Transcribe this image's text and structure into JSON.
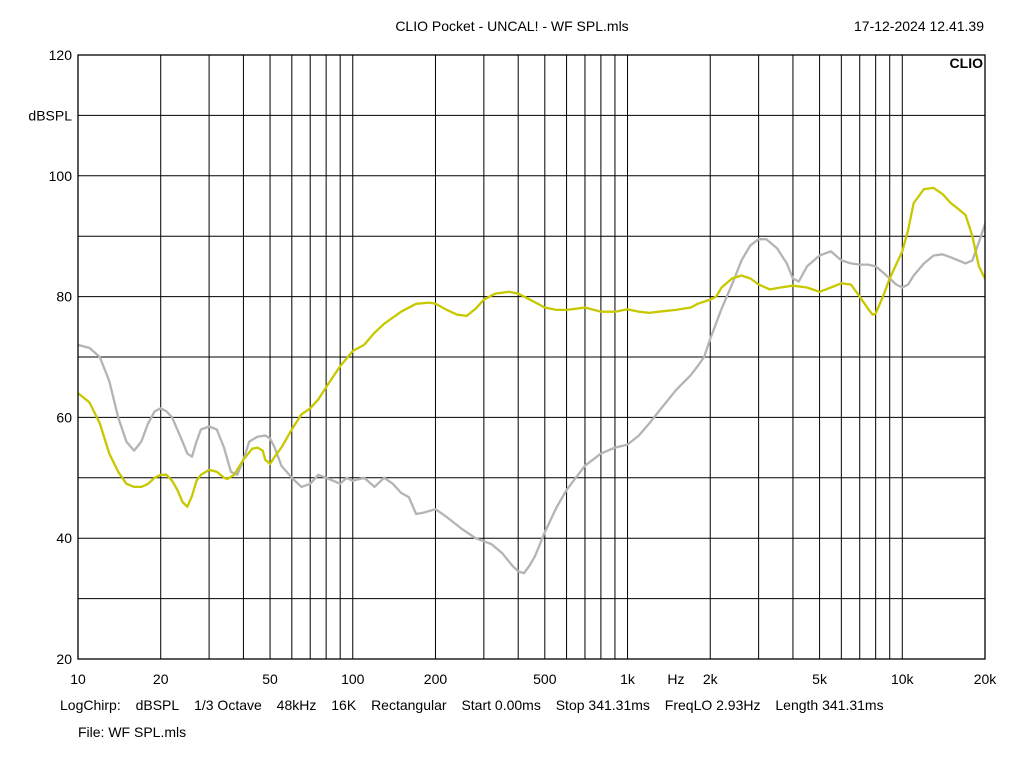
{
  "header": {
    "title": "CLIO Pocket - UNCAL! - WF SPL.mls",
    "date": "17-12-2024 12.41.39"
  },
  "chart_data": {
    "type": "line",
    "brand": "CLIO",
    "xscale": "log",
    "xlim": [
      10,
      20000
    ],
    "ylim": [
      20,
      120
    ],
    "grid": true,
    "ylabel": "dBSPL",
    "xunit": "Hz",
    "x_ticks": [
      {
        "v": 10,
        "t": "10"
      },
      {
        "v": 20,
        "t": "20"
      },
      {
        "v": 50,
        "t": "50"
      },
      {
        "v": 100,
        "t": "100"
      },
      {
        "v": 200,
        "t": "200"
      },
      {
        "v": 500,
        "t": "500"
      },
      {
        "v": 1000,
        "t": "1k"
      },
      {
        "v": 2000,
        "t": "2k"
      },
      {
        "v": 5000,
        "t": "5k"
      },
      {
        "v": 10000,
        "t": "10k"
      },
      {
        "v": 20000,
        "t": "20k"
      }
    ],
    "y_ticks": [
      {
        "v": 120,
        "t": "120"
      },
      {
        "v": 100,
        "t": "100"
      },
      {
        "v": 80,
        "t": "80"
      },
      {
        "v": 60,
        "t": "60"
      },
      {
        "v": 40,
        "t": "40"
      },
      {
        "v": 20,
        "t": "20"
      }
    ],
    "series": [
      {
        "color": "#c8c800",
        "points": [
          [
            10,
            64
          ],
          [
            11,
            62.5
          ],
          [
            12,
            59
          ],
          [
            13,
            54
          ],
          [
            14,
            51
          ],
          [
            15,
            49
          ],
          [
            16,
            48.5
          ],
          [
            17,
            48.5
          ],
          [
            18,
            49
          ],
          [
            19,
            50
          ],
          [
            20,
            50.5
          ],
          [
            21,
            50.5
          ],
          [
            22,
            49.5
          ],
          [
            23,
            48
          ],
          [
            24,
            46
          ],
          [
            25,
            45.2
          ],
          [
            26,
            47
          ],
          [
            27,
            49.5
          ],
          [
            28,
            50.5
          ],
          [
            30,
            51.3
          ],
          [
            32,
            51
          ],
          [
            34,
            50
          ],
          [
            35,
            49.8
          ],
          [
            37,
            50.5
          ],
          [
            40,
            53
          ],
          [
            43,
            54.8
          ],
          [
            45,
            55
          ],
          [
            47,
            54.5
          ],
          [
            48,
            53
          ],
          [
            50,
            52.3
          ],
          [
            52,
            53.5
          ],
          [
            55,
            55
          ],
          [
            60,
            58
          ],
          [
            65,
            60.5
          ],
          [
            70,
            61.5
          ],
          [
            75,
            63
          ],
          [
            80,
            65
          ],
          [
            90,
            68.5
          ],
          [
            100,
            71
          ],
          [
            110,
            72
          ],
          [
            120,
            74
          ],
          [
            130,
            75.5
          ],
          [
            150,
            77.5
          ],
          [
            170,
            78.8
          ],
          [
            190,
            79
          ],
          [
            200,
            78.8
          ],
          [
            220,
            77.8
          ],
          [
            240,
            77
          ],
          [
            260,
            76.8
          ],
          [
            280,
            78
          ],
          [
            300,
            79.5
          ],
          [
            330,
            80.5
          ],
          [
            370,
            80.8
          ],
          [
            400,
            80.5
          ],
          [
            450,
            79.3
          ],
          [
            500,
            78.2
          ],
          [
            550,
            77.8
          ],
          [
            600,
            77.8
          ],
          [
            650,
            78
          ],
          [
            700,
            78.2
          ],
          [
            800,
            77.5
          ],
          [
            900,
            77.5
          ],
          [
            1000,
            77.9
          ],
          [
            1100,
            77.5
          ],
          [
            1200,
            77.3
          ],
          [
            1300,
            77.5
          ],
          [
            1500,
            77.8
          ],
          [
            1700,
            78.2
          ],
          [
            1800,
            78.8
          ],
          [
            2000,
            79.5
          ],
          [
            2100,
            80
          ],
          [
            2200,
            81.5
          ],
          [
            2400,
            83
          ],
          [
            2600,
            83.5
          ],
          [
            2800,
            83
          ],
          [
            3000,
            82
          ],
          [
            3300,
            81.2
          ],
          [
            3600,
            81.5
          ],
          [
            4000,
            81.8
          ],
          [
            4500,
            81.5
          ],
          [
            5000,
            80.8
          ],
          [
            5500,
            81.5
          ],
          [
            6000,
            82.2
          ],
          [
            6500,
            82
          ],
          [
            7000,
            80
          ],
          [
            7500,
            78
          ],
          [
            7800,
            77
          ],
          [
            8000,
            77.2
          ],
          [
            8500,
            80
          ],
          [
            9000,
            83
          ],
          [
            10000,
            87.5
          ],
          [
            10500,
            91
          ],
          [
            11000,
            95.5
          ],
          [
            12000,
            97.8
          ],
          [
            13000,
            98
          ],
          [
            14000,
            97
          ],
          [
            15000,
            95.5
          ],
          [
            16000,
            94.5
          ],
          [
            17000,
            93.5
          ],
          [
            18000,
            90
          ],
          [
            19000,
            85
          ],
          [
            20000,
            83
          ],
          [
            21000,
            82.8
          ],
          [
            22000,
            83.5
          ],
          [
            23000,
            83.5
          ]
        ]
      },
      {
        "color": "#b4b4b4",
        "points": [
          [
            10,
            72
          ],
          [
            11,
            71.5
          ],
          [
            12,
            70
          ],
          [
            13,
            66
          ],
          [
            14,
            60
          ],
          [
            15,
            56
          ],
          [
            16,
            54.5
          ],
          [
            17,
            56
          ],
          [
            18,
            59
          ],
          [
            19,
            61
          ],
          [
            20,
            61.5
          ],
          [
            21,
            61
          ],
          [
            22,
            60
          ],
          [
            24,
            56
          ],
          [
            25,
            54
          ],
          [
            26,
            53.5
          ],
          [
            27,
            56
          ],
          [
            28,
            58
          ],
          [
            30,
            58.5
          ],
          [
            32,
            58
          ],
          [
            34,
            55
          ],
          [
            36,
            51
          ],
          [
            38,
            50.5
          ],
          [
            40,
            53
          ],
          [
            42,
            56
          ],
          [
            45,
            56.8
          ],
          [
            48,
            57
          ],
          [
            50,
            56.5
          ],
          [
            52,
            55
          ],
          [
            55,
            52
          ],
          [
            60,
            50
          ],
          [
            65,
            48.5
          ],
          [
            70,
            49
          ],
          [
            75,
            50.5
          ],
          [
            80,
            50
          ],
          [
            85,
            49.5
          ],
          [
            90,
            49
          ],
          [
            95,
            50
          ],
          [
            100,
            49.5
          ],
          [
            110,
            50
          ],
          [
            120,
            48.5
          ],
          [
            130,
            50
          ],
          [
            140,
            49
          ],
          [
            150,
            47.5
          ],
          [
            160,
            46.8
          ],
          [
            170,
            44
          ],
          [
            180,
            44.2
          ],
          [
            190,
            44.5
          ],
          [
            200,
            44.8
          ],
          [
            220,
            43.5
          ],
          [
            250,
            41.5
          ],
          [
            280,
            40
          ],
          [
            320,
            39
          ],
          [
            350,
            37.5
          ],
          [
            380,
            35.5
          ],
          [
            400,
            34.5
          ],
          [
            420,
            34.2
          ],
          [
            440,
            35.5
          ],
          [
            460,
            37
          ],
          [
            480,
            39
          ],
          [
            500,
            41
          ],
          [
            550,
            45
          ],
          [
            600,
            48
          ],
          [
            700,
            52
          ],
          [
            800,
            54
          ],
          [
            900,
            55
          ],
          [
            1000,
            55.5
          ],
          [
            1100,
            57
          ],
          [
            1200,
            59
          ],
          [
            1300,
            61
          ],
          [
            1500,
            64.5
          ],
          [
            1700,
            67
          ],
          [
            1800,
            68.5
          ],
          [
            1900,
            70
          ],
          [
            2000,
            73
          ],
          [
            2200,
            78
          ],
          [
            2400,
            82
          ],
          [
            2600,
            86
          ],
          [
            2800,
            88.5
          ],
          [
            3000,
            89.5
          ],
          [
            3200,
            89.5
          ],
          [
            3500,
            88
          ],
          [
            3800,
            85.5
          ],
          [
            4000,
            83
          ],
          [
            4200,
            82.5
          ],
          [
            4500,
            85
          ],
          [
            5000,
            86.8
          ],
          [
            5500,
            87.5
          ],
          [
            6000,
            86
          ],
          [
            6500,
            85.5
          ],
          [
            7000,
            85.3
          ],
          [
            7500,
            85.3
          ],
          [
            8000,
            85
          ],
          [
            8500,
            84
          ],
          [
            9000,
            83
          ],
          [
            9500,
            82
          ],
          [
            10000,
            81.5
          ],
          [
            10500,
            82
          ],
          [
            11000,
            83.5
          ],
          [
            12000,
            85.5
          ],
          [
            13000,
            86.8
          ],
          [
            14000,
            87
          ],
          [
            15000,
            86.5
          ],
          [
            16000,
            86
          ],
          [
            17000,
            85.5
          ],
          [
            18000,
            86
          ],
          [
            19000,
            89
          ],
          [
            20000,
            92
          ],
          [
            21000,
            93.5
          ],
          [
            22000,
            94.5
          ],
          [
            23000,
            95.5
          ]
        ]
      }
    ]
  },
  "footer": {
    "settings": [
      "LogChirp:",
      "dBSPL",
      "1/3 Octave",
      "48kHz",
      "16K",
      "Rectangular",
      "Start 0.00ms",
      "Stop 341.31ms",
      "FreqLO 2.93Hz",
      "Length 341.31ms"
    ],
    "file_label": "File: WF SPL.mls"
  }
}
